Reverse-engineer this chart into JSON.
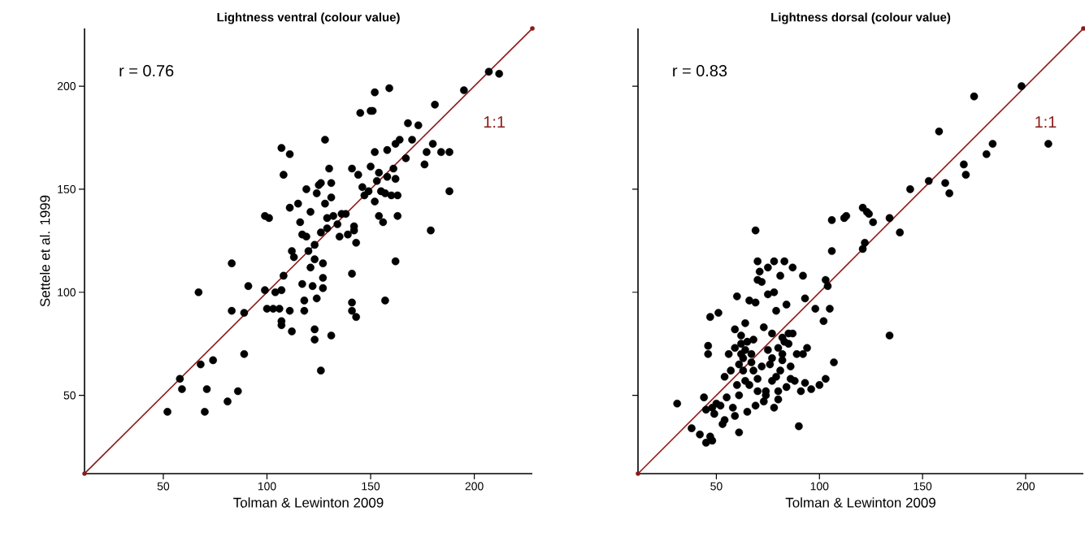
{
  "chart_data": [
    {
      "type": "scatter",
      "title": "Lightness ventral (colour value)",
      "xlabel": "Tolman & Lewinton 2009",
      "ylabel": "Settele et al. 1999",
      "xlim": [
        12,
        228
      ],
      "ylim": [
        12,
        228
      ],
      "xticks": [
        50,
        100,
        150,
        200
      ],
      "yticks": [
        50,
        100,
        150,
        200
      ],
      "grid": false,
      "marker": "circle",
      "series": [
        {
          "type": "scatter",
          "color": "#000000",
          "x": [
            52,
            58,
            59,
            67,
            68,
            70,
            71,
            74,
            81,
            83,
            83,
            86,
            89,
            89,
            91,
            99,
            99,
            100,
            101,
            103,
            104,
            106,
            107,
            107,
            107,
            108,
            107,
            108,
            111,
            111,
            111,
            112,
            112,
            113,
            115,
            116,
            117,
            117,
            118,
            118,
            119,
            119,
            120,
            121,
            121,
            122,
            123,
            123,
            123,
            123,
            124,
            124,
            125,
            126,
            126,
            126,
            127,
            127,
            127,
            128,
            128,
            129,
            129,
            130,
            131,
            131,
            131,
            132,
            134,
            135,
            136,
            138,
            139,
            141,
            141,
            141,
            141,
            142,
            142,
            143,
            143,
            144,
            145,
            146,
            147,
            149,
            150,
            150,
            151,
            152,
            152,
            152,
            153,
            154,
            154,
            155,
            156,
            157,
            157,
            158,
            158,
            159,
            160,
            161,
            162,
            162,
            162,
            163,
            163,
            164,
            167,
            168,
            170,
            173,
            176,
            177,
            179,
            180,
            181,
            184,
            188,
            188,
            195,
            207,
            212
          ],
          "values": [
            42,
            58,
            53,
            100,
            65,
            42,
            53,
            67,
            47,
            114,
            91,
            52,
            70,
            90,
            103,
            101,
            137,
            92,
            136,
            92,
            100,
            92,
            86,
            84,
            101,
            108,
            170,
            157,
            167,
            91,
            141,
            120,
            81,
            117,
            143,
            134,
            128,
            104,
            96,
            91,
            150,
            127,
            120,
            112,
            139,
            103,
            116,
            123,
            82,
            77,
            97,
            148,
            152,
            129,
            153,
            62,
            107,
            102,
            114,
            174,
            143,
            136,
            131,
            160,
            79,
            146,
            153,
            137,
            133,
            127,
            138,
            138,
            128,
            109,
            95,
            91,
            160,
            132,
            130,
            124,
            88,
            157,
            187,
            151,
            147,
            149,
            188,
            161,
            188,
            197,
            168,
            144,
            154,
            158,
            137,
            149,
            134,
            148,
            96,
            156,
            169,
            199,
            147,
            160,
            155,
            172,
            115,
            137,
            147,
            174,
            165,
            182,
            174,
            181,
            162,
            168,
            130,
            172,
            191,
            168,
            168,
            149,
            198,
            207,
            206
          ]
        },
        {
          "type": "line",
          "color": "#8b1a1a",
          "line_style": "solid",
          "x": [
            12,
            228
          ],
          "values": [
            12,
            228
          ]
        }
      ],
      "annotations": [
        "r = 0.76",
        "1:1"
      ]
    },
    {
      "type": "scatter",
      "title": "Lightness dorsal (colour value)",
      "xlabel": "Tolman & Lewinton 2009",
      "xlim": [
        12,
        228
      ],
      "ylim": [
        12,
        228
      ],
      "xticks": [
        50,
        100,
        150,
        200
      ],
      "yticks": [
        50,
        100,
        150,
        200
      ],
      "tick_labels": "x",
      "grid": false,
      "marker": "circle",
      "series": [
        {
          "type": "scatter",
          "color": "#000000",
          "x": [
            31,
            38,
            42,
            44,
            45,
            45,
            46,
            46,
            47,
            47,
            48,
            48,
            49,
            50,
            51,
            52,
            53,
            54,
            54,
            55,
            56,
            57,
            58,
            59,
            59,
            59,
            60,
            60,
            61,
            61,
            61,
            62,
            62,
            62,
            63,
            63,
            64,
            64,
            64,
            65,
            65,
            66,
            66,
            67,
            67,
            68,
            68,
            69,
            69,
            69,
            70,
            70,
            70,
            70,
            71,
            72,
            72,
            73,
            73,
            74,
            74,
            75,
            75,
            75,
            76,
            77,
            77,
            77,
            78,
            78,
            78,
            79,
            79,
            80,
            80,
            80,
            81,
            81,
            82,
            82,
            82,
            83,
            83,
            84,
            84,
            85,
            85,
            86,
            86,
            87,
            87,
            88,
            89,
            90,
            91,
            92,
            92,
            93,
            93,
            94,
            96,
            98,
            100,
            102,
            103,
            103,
            104,
            105,
            107,
            106,
            106,
            112,
            113,
            121,
            121,
            122,
            123,
            124,
            126,
            134,
            134,
            139,
            144,
            153,
            158,
            161,
            163,
            175,
            170,
            171,
            181,
            184,
            198,
            211
          ],
          "values": [
            46,
            34,
            31,
            49,
            43,
            27,
            74,
            70,
            30,
            88,
            28,
            44,
            41,
            46,
            90,
            45,
            36,
            38,
            59,
            49,
            70,
            62,
            44,
            73,
            40,
            82,
            98,
            55,
            32,
            65,
            50,
            70,
            75,
            79,
            62,
            68,
            72,
            85,
            57,
            42,
            76,
            96,
            55,
            70,
            66,
            77,
            62,
            130,
            95,
            45,
            115,
            106,
            52,
            58,
            110,
            105,
            64,
            83,
            47,
            52,
            50,
            99,
            112,
            72,
            65,
            80,
            57,
            68,
            115,
            100,
            44,
            59,
            91,
            73,
            52,
            48,
            108,
            62,
            70,
            67,
            78,
            115,
            76,
            94,
            54,
            75,
            80,
            64,
            58,
            112,
            80,
            57,
            70,
            35,
            52,
            108,
            70,
            97,
            56,
            73,
            53,
            92,
            55,
            86,
            106,
            58,
            103,
            92,
            66,
            120,
            135,
            136,
            137,
            121,
            141,
            124,
            139,
            138,
            134,
            136,
            79,
            129,
            150,
            154,
            178,
            153,
            148,
            195,
            162,
            157,
            167,
            172,
            200,
            172
          ]
        },
        {
          "type": "line",
          "color": "#8b1a1a",
          "line_style": "solid",
          "x": [
            12,
            228
          ],
          "values": [
            12,
            228
          ]
        }
      ],
      "annotations": [
        "r = 0.83",
        "1:1"
      ]
    }
  ]
}
